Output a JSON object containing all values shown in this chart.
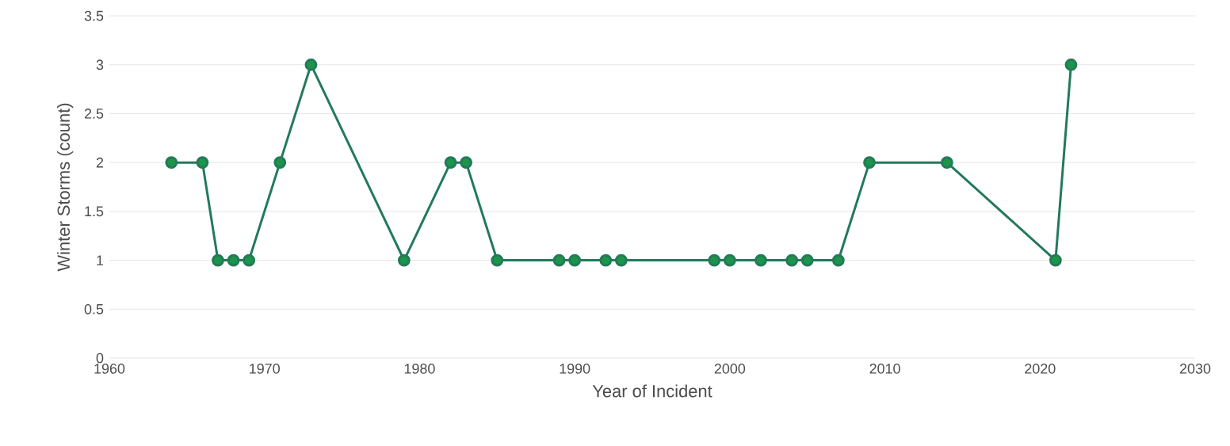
{
  "chart_data": {
    "type": "line",
    "xlabel": "Year of Incident",
    "ylabel": "Winter Storms (count)",
    "x": [
      1964,
      1966,
      1967,
      1968,
      1969,
      1971,
      1973,
      1979,
      1982,
      1983,
      1985,
      1989,
      1990,
      1992,
      1993,
      1999,
      2000,
      2002,
      2004,
      2005,
      2007,
      2009,
      2014,
      2021,
      2022
    ],
    "series": [
      {
        "color": "#237a5a",
        "values": [
          2,
          2,
          1,
          1,
          1,
          2,
          3,
          1,
          2,
          2,
          1,
          1,
          1,
          1,
          1,
          1,
          1,
          1,
          1,
          1,
          1,
          2,
          2,
          1,
          3
        ]
      }
    ],
    "xlim": [
      1960,
      2030
    ],
    "xticks": [
      1960,
      1970,
      1980,
      1990,
      2000,
      2010,
      2020,
      2030
    ],
    "ylim": [
      0,
      3.5
    ],
    "yticks": [
      0,
      0.5,
      1,
      1.5,
      2,
      2.5,
      3,
      3.5
    ],
    "grid": "y",
    "marker": "circle",
    "line_style": "solid"
  }
}
